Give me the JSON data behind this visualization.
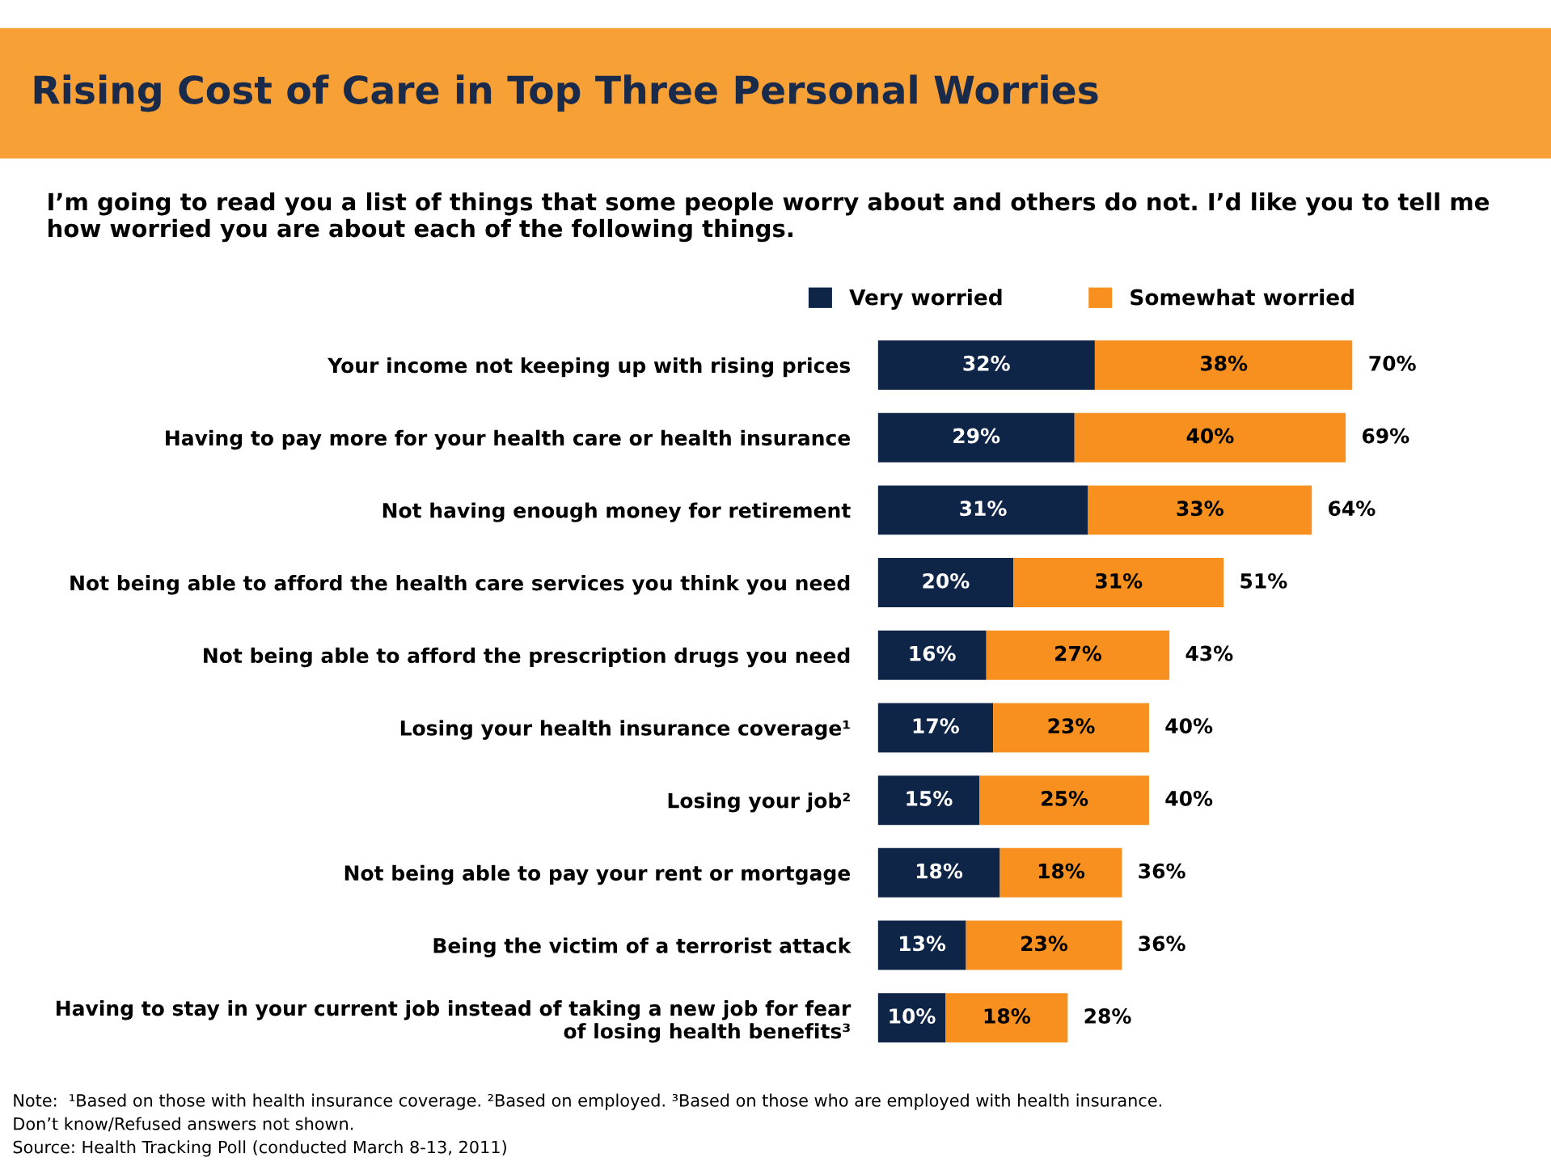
{
  "chart_data": {
    "type": "bar",
    "orientation": "horizontal",
    "stacked": true,
    "title": "Rising Cost of Care in Top Three Personal Worries",
    "subtitle": "I’m going to read you a list of things that some people worry about and others do not. I’d like you to tell me how worried you are about each of the following things.",
    "categories": [
      "Your income not keeping up with rising prices",
      "Having to pay more for your health care or health insurance",
      "Not having enough money for retirement",
      "Not being able to afford the health care services you think you need",
      "Not being able to afford the prescription drugs you need",
      "Losing your health insurance coverage¹",
      "Losing your job²",
      "Not being able to pay your rent or mortgage",
      "Being the victim of a terrorist attack",
      "Having to stay in your current job instead of taking a new job for fear\nof losing health benefits³"
    ],
    "series": [
      {
        "name": "Very worried",
        "color": "#0f2548",
        "values": [
          32,
          29,
          31,
          20,
          16,
          17,
          15,
          18,
          13,
          10
        ],
        "value_labels": [
          "32%",
          "29%",
          "31%",
          "20%",
          "16%",
          "17%",
          "15%",
          "18%",
          "13%",
          "10%"
        ]
      },
      {
        "name": "Somewhat worried",
        "color": "#f7901e",
        "values": [
          38,
          40,
          33,
          31,
          27,
          23,
          25,
          18,
          23,
          18
        ],
        "value_labels": [
          "38%",
          "40%",
          "33%",
          "31%",
          "27%",
          "23%",
          "25%",
          "18%",
          "23%",
          "18%"
        ]
      }
    ],
    "totals": [
      "70%",
      "69%",
      "64%",
      "51%",
      "43%",
      "40%",
      "40%",
      "36%",
      "36%",
      "28%"
    ],
    "tick_labels": false,
    "legend": "top",
    "grid": false,
    "annotations": [
      "Note:  ¹Based on those with health insurance coverage. ²Based on employed. ³Based on those who are employed with health insurance.",
      "Don’t know/Refused answers not shown.",
      "Source: Health Tracking Poll (conducted March 8-13, 2011)"
    ]
  }
}
